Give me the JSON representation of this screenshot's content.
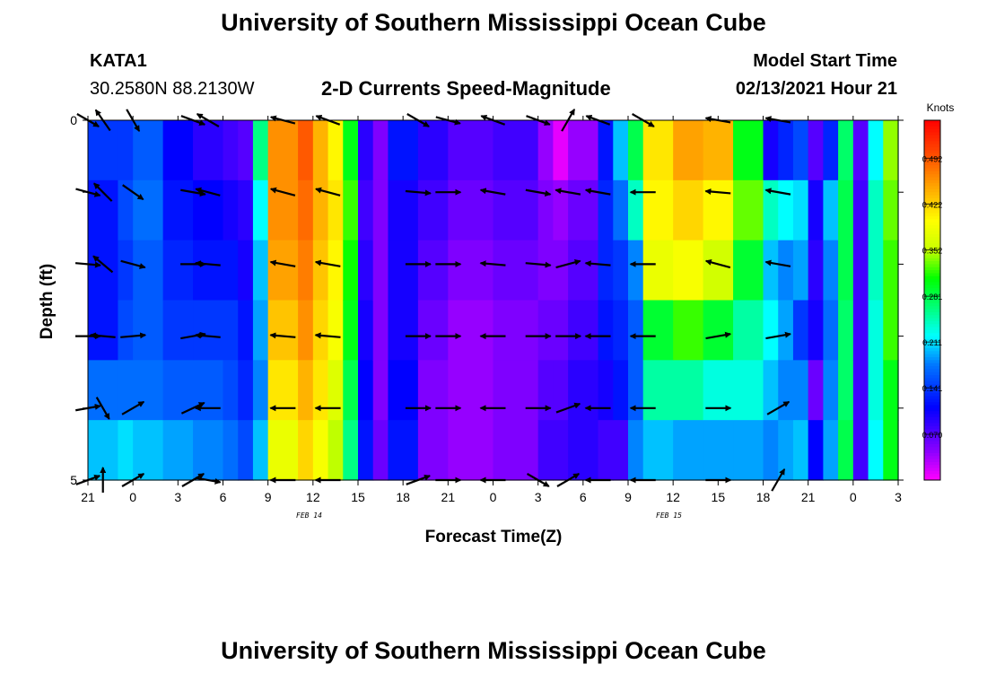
{
  "page": {
    "title": "University of Southern Mississippi Ocean Cube",
    "footer_title": "University of Southern Mississippi Ocean Cube",
    "station_id": "KATA1",
    "station_coords": "30.2580N 88.2130W",
    "chart_title": "2-D Currents Speed-Magnitude",
    "model_label": "Model Start Time",
    "model_time": "02/13/2021 Hour 21",
    "date_tags": [
      "FEB 14",
      "FEB 15"
    ]
  },
  "chart_data": {
    "type": "heatmap",
    "title": "2-D Currents Speed-Magnitude",
    "xlabel": "Forecast Time(Z)",
    "ylabel": "Depth (ft)",
    "x_range": [
      21,
      75
    ],
    "x_tick_labels": [
      "21",
      "0",
      "3",
      "6",
      "9",
      "12",
      "15",
      "18",
      "21",
      "0",
      "3",
      "6",
      "9",
      "12",
      "15",
      "18",
      "21",
      "0",
      "3"
    ],
    "y_range": [
      0,
      5
    ],
    "y_tick_labels": [
      "0",
      "5"
    ],
    "colorbar": {
      "unit": "Knots",
      "ticks": [
        0.492,
        0.422,
        0.352,
        0.281,
        0.211,
        0.141,
        0.07
      ],
      "tick_labels": [
        "0.492",
        "0.422",
        "0.352",
        "0.281",
        "0.211",
        "0.141",
        "0.070"
      ],
      "range": [
        0,
        0.55
      ]
    },
    "depth_rows": [
      "0",
      "1",
      "2",
      "3",
      "4",
      "5"
    ],
    "speed_profile": [
      {
        "hour": 21,
        "knots": [
          0.14,
          0.12,
          0.12,
          0.12,
          0.17,
          0.2
        ]
      },
      {
        "hour": 23,
        "knots": [
          0.14,
          0.15,
          0.14,
          0.15,
          0.17,
          0.21
        ]
      },
      {
        "hour": 24,
        "knots": [
          0.16,
          0.17,
          0.16,
          0.16,
          0.17,
          0.2
        ]
      },
      {
        "hour": 26,
        "knots": [
          0.11,
          0.12,
          0.13,
          0.14,
          0.16,
          0.19
        ]
      },
      {
        "hour": 28,
        "knots": [
          0.09,
          0.11,
          0.12,
          0.14,
          0.16,
          0.18
        ]
      },
      {
        "hour": 30,
        "knots": [
          0.08,
          0.1,
          0.12,
          0.14,
          0.15,
          0.17
        ]
      },
      {
        "hour": 31,
        "knots": [
          0.07,
          0.09,
          0.1,
          0.12,
          0.13,
          0.15
        ]
      },
      {
        "hour": 32,
        "knots": [
          0.26,
          0.22,
          0.2,
          0.19,
          0.18,
          0.2
        ]
      },
      {
        "hour": 33,
        "knots": [
          0.46,
          0.46,
          0.45,
          0.43,
          0.41,
          0.38
        ]
      },
      {
        "hour": 35,
        "knots": [
          0.49,
          0.48,
          0.47,
          0.46,
          0.44,
          0.42
        ]
      },
      {
        "hour": 36,
        "knots": [
          0.44,
          0.44,
          0.43,
          0.42,
          0.41,
          0.39
        ]
      },
      {
        "hour": 37,
        "knots": [
          0.4,
          0.41,
          0.4,
          0.39,
          0.37,
          0.35
        ]
      },
      {
        "hour": 38,
        "knots": [
          0.3,
          0.32,
          0.31,
          0.3,
          0.28,
          0.26
        ]
      },
      {
        "hour": 39,
        "knots": [
          0.09,
          0.08,
          0.09,
          0.1,
          0.11,
          0.12
        ]
      },
      {
        "hour": 40,
        "knots": [
          0.05,
          0.05,
          0.05,
          0.05,
          0.05,
          0.06
        ]
      },
      {
        "hour": 41,
        "knots": [
          0.12,
          0.1,
          0.1,
          0.1,
          0.11,
          0.12
        ]
      },
      {
        "hour": 43,
        "knots": [
          0.09,
          0.08,
          0.07,
          0.06,
          0.05,
          0.05
        ]
      },
      {
        "hour": 45,
        "knots": [
          0.07,
          0.06,
          0.05,
          0.04,
          0.04,
          0.04
        ]
      },
      {
        "hour": 48,
        "knots": [
          0.08,
          0.07,
          0.06,
          0.05,
          0.05,
          0.05
        ]
      },
      {
        "hour": 51,
        "knots": [
          0.04,
          0.05,
          0.05,
          0.06,
          0.07,
          0.08
        ]
      },
      {
        "hour": 52,
        "knots": [
          0.01,
          0.04,
          0.05,
          0.06,
          0.07,
          0.08
        ]
      },
      {
        "hour": 53,
        "knots": [
          0.04,
          0.06,
          0.07,
          0.08,
          0.09,
          0.09
        ]
      },
      {
        "hour": 55,
        "knots": [
          0.12,
          0.13,
          0.13,
          0.12,
          0.1,
          0.08
        ]
      },
      {
        "hour": 56,
        "knots": [
          0.2,
          0.17,
          0.14,
          0.13,
          0.12,
          0.08
        ]
      },
      {
        "hour": 57,
        "knots": [
          0.28,
          0.24,
          0.18,
          0.16,
          0.16,
          0.18
        ]
      },
      {
        "hour": 58,
        "knots": [
          0.41,
          0.4,
          0.38,
          0.29,
          0.25,
          0.2
        ]
      },
      {
        "hour": 60,
        "knots": [
          0.45,
          0.42,
          0.39,
          0.32,
          0.25,
          0.19
        ]
      },
      {
        "hour": 62,
        "knots": [
          0.44,
          0.4,
          0.36,
          0.29,
          0.23,
          0.19
        ]
      },
      {
        "hour": 64,
        "knots": [
          0.3,
          0.33,
          0.29,
          0.25,
          0.23,
          0.19
        ]
      },
      {
        "hour": 66,
        "knots": [
          0.1,
          0.24,
          0.2,
          0.22,
          0.2,
          0.18
        ]
      },
      {
        "hour": 67,
        "knots": [
          0.13,
          0.22,
          0.18,
          0.19,
          0.18,
          0.19
        ]
      },
      {
        "hour": 68,
        "knots": [
          0.15,
          0.21,
          0.19,
          0.14,
          0.18,
          0.2
        ]
      },
      {
        "hour": 69,
        "knots": [
          0.07,
          0.1,
          0.09,
          0.1,
          0.06,
          0.11
        ]
      },
      {
        "hour": 70,
        "knots": [
          0.13,
          0.2,
          0.18,
          0.17,
          0.18,
          0.19
        ]
      },
      {
        "hour": 71,
        "knots": [
          0.27,
          0.28,
          0.28,
          0.27,
          0.27,
          0.28
        ]
      },
      {
        "hour": 72,
        "knots": [
          0.07,
          0.08,
          0.08,
          0.08,
          0.08,
          0.08
        ]
      },
      {
        "hour": 73,
        "knots": [
          0.22,
          0.24,
          0.24,
          0.23,
          0.23,
          0.22
        ]
      },
      {
        "hour": 74,
        "knots": [
          0.34,
          0.33,
          0.32,
          0.32,
          0.3,
          0.3
        ]
      },
      {
        "hour": 75,
        "knots": [
          0.2,
          0.21,
          0.22,
          0.22,
          0.21,
          0.2
        ]
      }
    ],
    "vectors": [
      {
        "hour": 21,
        "depth": 0,
        "dir_deg": -30
      },
      {
        "hour": 21,
        "depth": 1,
        "dir_deg": -15
      },
      {
        "hour": 21,
        "depth": 2,
        "dir_deg": -5
      },
      {
        "hour": 21,
        "depth": 3,
        "dir_deg": 0
      },
      {
        "hour": 21,
        "depth": 4,
        "dir_deg": 10
      },
      {
        "hour": 21,
        "depth": 5,
        "dir_deg": 20
      },
      {
        "hour": 22,
        "depth": 0,
        "dir_deg": 125
      },
      {
        "hour": 22,
        "depth": 1,
        "dir_deg": 135
      },
      {
        "hour": 22,
        "depth": 2,
        "dir_deg": 140
      },
      {
        "hour": 22,
        "depth": 3,
        "dir_deg": 175
      },
      {
        "hour": 22,
        "depth": 4,
        "dir_deg": -60
      },
      {
        "hour": 22,
        "depth": 5,
        "dir_deg": 90
      },
      {
        "hour": 24,
        "depth": 0,
        "dir_deg": -60
      },
      {
        "hour": 24,
        "depth": 1,
        "dir_deg": -35
      },
      {
        "hour": 24,
        "depth": 2,
        "dir_deg": -15
      },
      {
        "hour": 24,
        "depth": 3,
        "dir_deg": 5
      },
      {
        "hour": 24,
        "depth": 4,
        "dir_deg": 30
      },
      {
        "hour": 24,
        "depth": 5,
        "dir_deg": 30
      },
      {
        "hour": 28,
        "depth": 0,
        "dir_deg": -20
      },
      {
        "hour": 28,
        "depth": 1,
        "dir_deg": -10
      },
      {
        "hour": 28,
        "depth": 2,
        "dir_deg": 0
      },
      {
        "hour": 28,
        "depth": 3,
        "dir_deg": 10
      },
      {
        "hour": 28,
        "depth": 4,
        "dir_deg": 25
      },
      {
        "hour": 28,
        "depth": 5,
        "dir_deg": 30
      },
      {
        "hour": 29,
        "depth": 0,
        "dir_deg": 150
      },
      {
        "hour": 29,
        "depth": 1,
        "dir_deg": 165
      },
      {
        "hour": 29,
        "depth": 2,
        "dir_deg": 175
      },
      {
        "hour": 29,
        "depth": 3,
        "dir_deg": 175
      },
      {
        "hour": 29,
        "depth": 4,
        "dir_deg": 180
      },
      {
        "hour": 29,
        "depth": 5,
        "dir_deg": -10
      },
      {
        "hour": 34,
        "depth": 0,
        "dir_deg": 165
      },
      {
        "hour": 34,
        "depth": 1,
        "dir_deg": 165
      },
      {
        "hour": 34,
        "depth": 2,
        "dir_deg": 170
      },
      {
        "hour": 34,
        "depth": 3,
        "dir_deg": 175
      },
      {
        "hour": 34,
        "depth": 4,
        "dir_deg": 180
      },
      {
        "hour": 34,
        "depth": 5,
        "dir_deg": 180
      },
      {
        "hour": 37,
        "depth": 0,
        "dir_deg": 160
      },
      {
        "hour": 37,
        "depth": 1,
        "dir_deg": 165
      },
      {
        "hour": 37,
        "depth": 2,
        "dir_deg": 170
      },
      {
        "hour": 37,
        "depth": 3,
        "dir_deg": 175
      },
      {
        "hour": 37,
        "depth": 4,
        "dir_deg": 180
      },
      {
        "hour": 37,
        "depth": 5,
        "dir_deg": 180
      },
      {
        "hour": 43,
        "depth": 0,
        "dir_deg": -30
      },
      {
        "hour": 43,
        "depth": 1,
        "dir_deg": -5
      },
      {
        "hour": 43,
        "depth": 2,
        "dir_deg": 0
      },
      {
        "hour": 43,
        "depth": 3,
        "dir_deg": 0
      },
      {
        "hour": 43,
        "depth": 4,
        "dir_deg": 0
      },
      {
        "hour": 43,
        "depth": 5,
        "dir_deg": 20
      },
      {
        "hour": 45,
        "depth": 0,
        "dir_deg": -15
      },
      {
        "hour": 45,
        "depth": 1,
        "dir_deg": 0
      },
      {
        "hour": 45,
        "depth": 2,
        "dir_deg": 0
      },
      {
        "hour": 45,
        "depth": 3,
        "dir_deg": 0
      },
      {
        "hour": 45,
        "depth": 4,
        "dir_deg": 0
      },
      {
        "hour": 45,
        "depth": 5,
        "dir_deg": 0
      },
      {
        "hour": 48,
        "depth": 0,
        "dir_deg": 160
      },
      {
        "hour": 48,
        "depth": 1,
        "dir_deg": 170
      },
      {
        "hour": 48,
        "depth": 2,
        "dir_deg": 175
      },
      {
        "hour": 48,
        "depth": 3,
        "dir_deg": 180
      },
      {
        "hour": 48,
        "depth": 4,
        "dir_deg": 180
      },
      {
        "hour": 48,
        "depth": 5,
        "dir_deg": 180
      },
      {
        "hour": 51,
        "depth": 0,
        "dir_deg": -20
      },
      {
        "hour": 51,
        "depth": 1,
        "dir_deg": -10
      },
      {
        "hour": 51,
        "depth": 2,
        "dir_deg": -5
      },
      {
        "hour": 51,
        "depth": 3,
        "dir_deg": 0
      },
      {
        "hour": 51,
        "depth": 4,
        "dir_deg": 0
      },
      {
        "hour": 51,
        "depth": 5,
        "dir_deg": -30
      },
      {
        "hour": 53,
        "depth": 0,
        "dir_deg": 60
      },
      {
        "hour": 53,
        "depth": 1,
        "dir_deg": 170
      },
      {
        "hour": 53,
        "depth": 2,
        "dir_deg": 15
      },
      {
        "hour": 53,
        "depth": 3,
        "dir_deg": 0
      },
      {
        "hour": 53,
        "depth": 4,
        "dir_deg": 20
      },
      {
        "hour": 53,
        "depth": 5,
        "dir_deg": 30
      },
      {
        "hour": 55,
        "depth": 0,
        "dir_deg": 160
      },
      {
        "hour": 55,
        "depth": 1,
        "dir_deg": 170
      },
      {
        "hour": 55,
        "depth": 2,
        "dir_deg": 175
      },
      {
        "hour": 55,
        "depth": 3,
        "dir_deg": 180
      },
      {
        "hour": 55,
        "depth": 4,
        "dir_deg": 180
      },
      {
        "hour": 55,
        "depth": 5,
        "dir_deg": 180
      },
      {
        "hour": 58,
        "depth": 0,
        "dir_deg": -30
      },
      {
        "hour": 58,
        "depth": 1,
        "dir_deg": 180
      },
      {
        "hour": 58,
        "depth": 2,
        "dir_deg": 180
      },
      {
        "hour": 58,
        "depth": 3,
        "dir_deg": 180
      },
      {
        "hour": 58,
        "depth": 4,
        "dir_deg": 180
      },
      {
        "hour": 58,
        "depth": 5,
        "dir_deg": 180
      },
      {
        "hour": 63,
        "depth": 0,
        "dir_deg": 170
      },
      {
        "hour": 63,
        "depth": 1,
        "dir_deg": 175
      },
      {
        "hour": 63,
        "depth": 2,
        "dir_deg": 165
      },
      {
        "hour": 63,
        "depth": 3,
        "dir_deg": 10
      },
      {
        "hour": 63,
        "depth": 4,
        "dir_deg": 0
      },
      {
        "hour": 63,
        "depth": 5,
        "dir_deg": 0
      },
      {
        "hour": 67,
        "depth": 0,
        "dir_deg": 170
      },
      {
        "hour": 67,
        "depth": 1,
        "dir_deg": 170
      },
      {
        "hour": 67,
        "depth": 2,
        "dir_deg": 170
      },
      {
        "hour": 67,
        "depth": 3,
        "dir_deg": 10
      },
      {
        "hour": 67,
        "depth": 4,
        "dir_deg": 30
      },
      {
        "hour": 67,
        "depth": 5,
        "dir_deg": 60
      }
    ]
  }
}
